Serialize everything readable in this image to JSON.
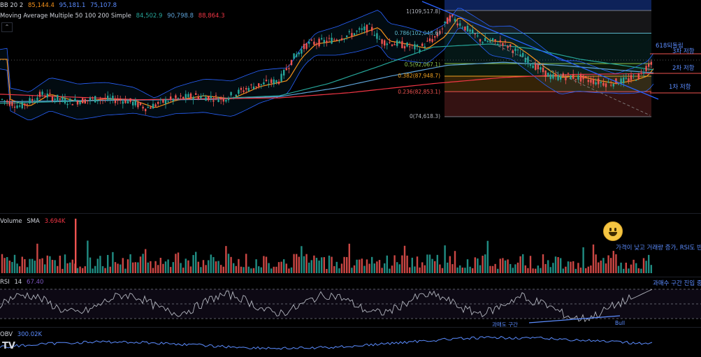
{
  "indicators": {
    "bb": {
      "name": "BB 20 2",
      "basis": "85,144.4",
      "upper": "95,181.1",
      "lower": "75,107.8",
      "colors": {
        "basis": "#f7931a",
        "upper": "#2962ff",
        "lower": "#2962ff"
      }
    },
    "ma": {
      "name": "Moving Average Multiple 50 100 200 Simple",
      "v50": "84,502.9",
      "v100": "90,798.8",
      "v200": "88,864.3",
      "colors": {
        "v50": "#26a69a",
        "v100": "#5ea3d9",
        "v200": "#f23645"
      }
    },
    "volume": {
      "name": "Volume",
      "sma_label": "SMA",
      "sma": "3.694K"
    },
    "rsi": {
      "name": "RSI",
      "period": "14",
      "value": "67.40"
    },
    "obv": {
      "name": "OBV",
      "value": "300.02K"
    }
  },
  "chart_data": {
    "type": "candlestick",
    "title": "",
    "fib_levels": [
      {
        "ratio": "1",
        "price": "109,517.8"
      },
      {
        "ratio": "0.786",
        "price": "102,048.6"
      },
      {
        "ratio": "0.5",
        "price": "92,067.1"
      },
      {
        "ratio": "0.382",
        "price": "87,948.7"
      },
      {
        "ratio": "0.236",
        "price": "82,853.1"
      },
      {
        "ratio": "0",
        "price": "74,618.3"
      }
    ],
    "annotations": {
      "r618": "618되돌림",
      "r3": "3차 저항",
      "r2": "2차 저항",
      "r1": "1차 저항",
      "volume_note": "가격이 낮고 거래량 증가, RSI도 반",
      "rsi_note": "과매수 구간 진입 중",
      "oversold": "과매도 구간",
      "bull": "Bull"
    },
    "rsi_levels": [
      70,
      50,
      30
    ],
    "grid": false,
    "legend": "top-left"
  },
  "icons": {
    "collapse": "chevron-up-icon",
    "logo": "tradingview-logo-icon",
    "emoji": "smiling-face-icon"
  }
}
